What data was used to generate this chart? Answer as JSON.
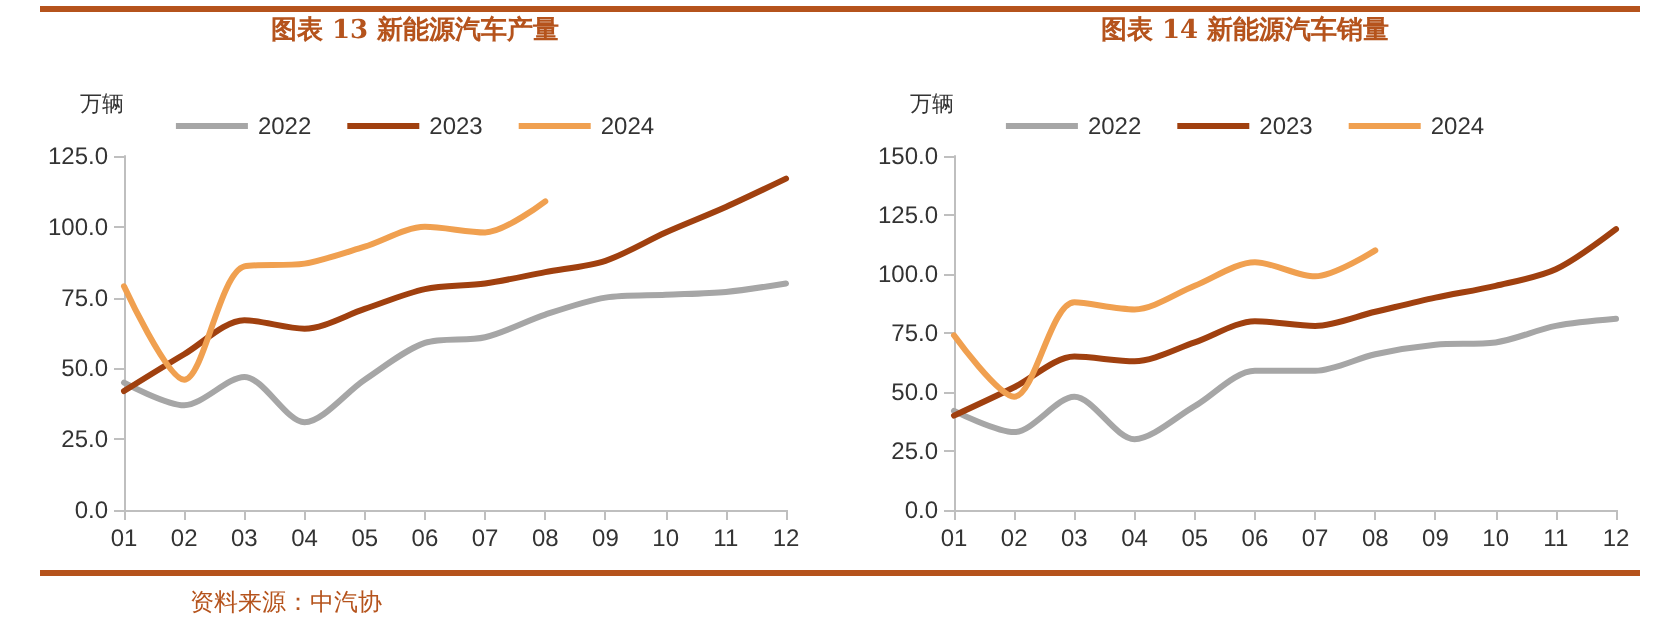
{
  "chart_data": [
    {
      "type": "line",
      "title": "图表 13 新能源汽车产量",
      "ylabel": "万辆",
      "categories": [
        "01",
        "02",
        "03",
        "04",
        "05",
        "06",
        "07",
        "08",
        "09",
        "10",
        "11",
        "12"
      ],
      "series": [
        {
          "name": "2022",
          "color": "#a6a6a6",
          "values": [
            45,
            37,
            47,
            31,
            46,
            59,
            61,
            69,
            75,
            76,
            77,
            80
          ]
        },
        {
          "name": "2023",
          "color": "#a0400f",
          "values": [
            42,
            55,
            67,
            64,
            71,
            78,
            80,
            84,
            88,
            98,
            107,
            117
          ]
        },
        {
          "name": "2024",
          "color": "#f0a050",
          "values": [
            79,
            46,
            86,
            87,
            93,
            100,
            98,
            109,
            null,
            null,
            null,
            null
          ]
        }
      ],
      "ylim": [
        0,
        125
      ],
      "yticks": [
        {
          "value": 0,
          "label": "0.0"
        },
        {
          "value": 25,
          "label": "25.0"
        },
        {
          "value": 50,
          "label": "50.0"
        },
        {
          "value": 75,
          "label": "75.0"
        },
        {
          "value": 100,
          "label": "100.0"
        },
        {
          "value": 125,
          "label": "125.0"
        }
      ],
      "legend": "top",
      "grid": false,
      "marker": "none",
      "annotations": [
        "资料来源：中汽协"
      ]
    },
    {
      "type": "line",
      "title": "图表 14 新能源汽车销量",
      "ylabel": "万辆",
      "categories": [
        "01",
        "02",
        "03",
        "04",
        "05",
        "06",
        "07",
        "08",
        "09",
        "10",
        "11",
        "12"
      ],
      "series": [
        {
          "name": "2022",
          "color": "#a6a6a6",
          "values": [
            42,
            33,
            48,
            30,
            44,
            59,
            59,
            66,
            70,
            71,
            78,
            81
          ]
        },
        {
          "name": "2023",
          "color": "#a0400f",
          "values": [
            40,
            52,
            65,
            63,
            71,
            80,
            78,
            84,
            90,
            95,
            102,
            119
          ]
        },
        {
          "name": "2024",
          "color": "#f0a050",
          "values": [
            74,
            48,
            88,
            85,
            95,
            105,
            99,
            110,
            null,
            null,
            null,
            null
          ]
        }
      ],
      "ylim": [
        0,
        150
      ],
      "yticks": [
        {
          "value": 0,
          "label": "0.0"
        },
        {
          "value": 25,
          "label": "25.0"
        },
        {
          "value": 50,
          "label": "50.0"
        },
        {
          "value": 75,
          "label": "75.0"
        },
        {
          "value": 100,
          "label": "100.0"
        },
        {
          "value": 125,
          "label": "125.0"
        },
        {
          "value": 150,
          "label": "150.0"
        }
      ],
      "legend": "top",
      "grid": false,
      "marker": "none"
    }
  ]
}
